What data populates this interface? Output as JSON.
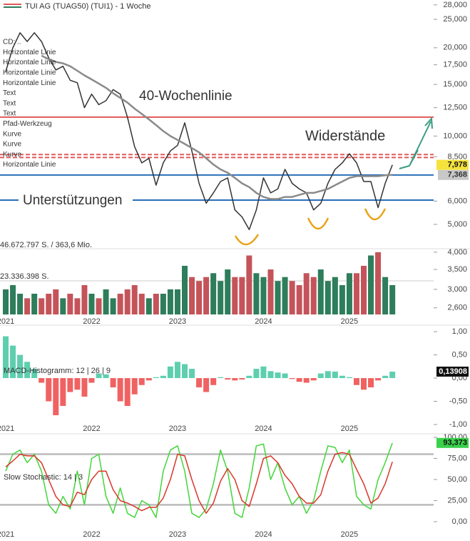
{
  "chart_data": [
    {
      "type": "line",
      "title": "TUI AG (TUAG50) (TUI1) - 1 Woche",
      "log_scale": true,
      "categories": [
        "2021",
        null,
        null,
        null,
        null,
        null,
        null,
        null,
        null,
        null,
        null,
        null,
        "2022",
        null,
        null,
        null,
        null,
        null,
        null,
        null,
        null,
        null,
        null,
        null,
        "2023",
        null,
        null,
        null,
        null,
        null,
        null,
        null,
        null,
        null,
        null,
        null,
        "2024",
        null,
        null,
        null,
        null,
        null,
        null,
        null,
        null,
        null,
        null,
        null,
        "2025",
        null,
        null,
        null,
        null,
        null,
        null
      ],
      "series": [
        {
          "color": "#333333",
          "values": [
            16.6,
            20.0,
            22.5,
            21.0,
            22.5,
            21.0,
            18.5,
            16.8,
            17.3,
            15.5,
            15.2,
            12.5,
            13.9,
            12.8,
            13.2,
            14.4,
            13.9,
            11.6,
            9.2,
            8.1,
            8.4,
            6.8,
            8.1,
            8.9,
            9.3,
            11.1,
            8.9,
            6.9,
            5.9,
            6.4,
            7.0,
            7.2,
            5.6,
            5.3,
            4.8,
            5.6,
            7.2,
            6.4,
            6.6,
            7.7,
            6.9,
            6.6,
            6.4,
            5.6,
            5.9,
            6.9,
            7.7,
            8.1,
            8.7,
            8.1,
            7.0,
            7.0,
            5.7,
            6.9,
            7.978
          ]
        },
        {
          "color": "#8a8a8a",
          "values": [
            null,
            null,
            null,
            null,
            null,
            18.8,
            18.3,
            17.9,
            17.7,
            17.3,
            16.7,
            16.1,
            15.6,
            15.1,
            14.6,
            14.0,
            13.5,
            13.0,
            12.4,
            11.9,
            11.4,
            10.9,
            10.4,
            10.0,
            9.7,
            9.4,
            9.1,
            8.8,
            8.4,
            8.0,
            7.7,
            7.5,
            7.2,
            6.9,
            6.7,
            6.4,
            6.2,
            6.1,
            6.1,
            6.2,
            6.2,
            6.3,
            6.4,
            6.4,
            6.5,
            6.6,
            6.8,
            7.0,
            7.2,
            7.3,
            7.3,
            7.3,
            7.3,
            7.35,
            7.37
          ]
        }
      ],
      "ylim": [
        4.13,
        29.1
      ],
      "yticks": [
        {
          "value": 28,
          "label": "28,000"
        },
        {
          "value": 25,
          "label": "25,000"
        },
        {
          "value": 20,
          "label": "20,000"
        },
        {
          "value": 17.5,
          "label": "17,500"
        },
        {
          "value": 15,
          "label": "15,000"
        },
        {
          "value": 12.5,
          "label": "12,500"
        },
        {
          "value": 10,
          "label": "10,000"
        },
        {
          "value": 8.5,
          "label": "8,500"
        },
        {
          "value": 6,
          "label": "6,000"
        },
        {
          "value": 5,
          "label": "5,000"
        }
      ],
      "hlines": [
        {
          "value": 11.6,
          "color": "#e05a5a",
          "style": "solid"
        },
        {
          "value": 8.65,
          "color": "#e05a5a",
          "style": "dashed"
        },
        {
          "value": 8.45,
          "color": "#e05a5a",
          "style": "dashed"
        },
        {
          "value": 7.368,
          "color": "#2a6fba",
          "style": "solid",
          "label": "7,368"
        },
        {
          "value": 6.05,
          "color": "#2a6fba",
          "style": "solid"
        }
      ],
      "last_label": {
        "value": 7.978,
        "label": "7,978"
      },
      "annotations": [
        {
          "text": "40-Wochenlinie",
          "color": "#7a7a7a"
        },
        {
          "text": "Widerstände",
          "color": "#e05a5a"
        },
        {
          "text": "Unterstützungen",
          "color": "#2a6fba"
        }
      ],
      "tools": [
        {
          "label": "CD: ..",
          "color": "#888888"
        },
        {
          "label": "Horizontale Linie",
          "color": "#2a6fba"
        },
        {
          "label": "Horizontale Linie",
          "color": "#e05a5a"
        },
        {
          "label": "Horizontale Linie",
          "color": "#e05a5a"
        },
        {
          "label": "Horizontale Linie",
          "color": "#2a6fba"
        },
        {
          "label": "Text",
          "color": "#222222"
        },
        {
          "label": "Text",
          "color": "#222222"
        },
        {
          "label": "Text",
          "color": "#222222"
        },
        {
          "label": "Pfad-Werkzeug",
          "color": "#777777"
        },
        {
          "label": "Kurve",
          "color": "#e8a317"
        },
        {
          "label": "Kurve",
          "color": "#e8a317"
        },
        {
          "label": "Kurve",
          "color": "#e8a317"
        },
        {
          "label": "Horizontale Linie",
          "color": "#e05a5a"
        }
      ]
    },
    {
      "type": "bar",
      "log_scale": true,
      "ylim": [
        2.47,
        4.11
      ],
      "yticks": [
        {
          "value": 4,
          "label": "4,000"
        },
        {
          "value": 3.5,
          "label": "3,500"
        },
        {
          "value": 3,
          "label": "3,000"
        },
        {
          "value": 2.6,
          "label": "2,600"
        }
      ],
      "values": [
        3.0,
        3.1,
        2.9,
        2.8,
        2.9,
        2.8,
        2.9,
        3.0,
        2.8,
        2.9,
        2.8,
        3.1,
        2.9,
        2.8,
        3.0,
        2.8,
        2.9,
        3.0,
        3.1,
        2.9,
        2.8,
        2.9,
        2.9,
        3.0,
        3.0,
        3.6,
        3.3,
        3.2,
        3.3,
        3.4,
        3.2,
        3.5,
        3.3,
        3.3,
        3.9,
        3.4,
        3.3,
        3.5,
        3.2,
        3.3,
        3.2,
        3.1,
        3.4,
        3.3,
        3.5,
        3.2,
        3.3,
        3.1,
        3.4,
        3.4,
        3.6,
        3.9,
        4.0,
        3.3,
        3.1
      ],
      "up_color": "#2e7d5b",
      "down_color": "#c4545a",
      "volume_labels": [
        "46.672.797 S. / 363,6 Mio.",
        "23.336.398 S."
      ]
    },
    {
      "type": "bar",
      "title": "MACD-Histogramm: 12 | 26 | 9",
      "ylim": [
        -1.0,
        1.14
      ],
      "yticks": [
        {
          "value": 1,
          "label": "1,00"
        },
        {
          "value": 0.5,
          "label": "0,50"
        },
        {
          "value": 0,
          "label": "0,00"
        },
        {
          "value": -0.5,
          "label": "-0,50"
        },
        {
          "value": -1,
          "label": "-1,00"
        }
      ],
      "values": [
        0.9,
        0.7,
        0.5,
        0.35,
        0.2,
        -0.1,
        -0.5,
        -0.8,
        -0.6,
        -0.3,
        -0.25,
        -0.4,
        -0.1,
        0.1,
        0.08,
        -0.2,
        -0.5,
        -0.6,
        -0.35,
        -0.15,
        -0.05,
        0.02,
        0.05,
        0.25,
        0.35,
        0.3,
        0.2,
        -0.2,
        -0.3,
        -0.15,
        0.02,
        -0.03,
        -0.05,
        -0.03,
        0.05,
        0.2,
        0.25,
        0.15,
        0.12,
        0.1,
        -0.02,
        -0.08,
        -0.1,
        -0.05,
        0.1,
        0.15,
        0.14,
        0.05,
        0.02,
        -0.15,
        -0.25,
        -0.2,
        -0.05,
        0.05,
        0.139
      ],
      "positive_color": "#5ecfae",
      "negative_color": "#f06262",
      "last_label": {
        "value": 0.13908,
        "label": "0,13908"
      }
    },
    {
      "type": "line",
      "title": "Slow Stochastic: 14 | 3",
      "ylim": [
        -10.2,
        104.2
      ],
      "yticks": [
        {
          "value": 100,
          "label": "100,00"
        },
        {
          "value": 75,
          "label": "75,00"
        },
        {
          "value": 50,
          "label": "50,00"
        },
        {
          "value": 25,
          "label": "25,00"
        },
        {
          "value": 0,
          "label": "0,00"
        }
      ],
      "levels": [
        80,
        20
      ],
      "series": [
        {
          "color": "#43d63a",
          "values": [
            60,
            80,
            85,
            70,
            80,
            60,
            20,
            10,
            30,
            15,
            60,
            20,
            75,
            80,
            30,
            10,
            40,
            10,
            5,
            25,
            20,
            5,
            60,
            85,
            90,
            60,
            10,
            5,
            15,
            45,
            85,
            60,
            10,
            5,
            40,
            90,
            92,
            50,
            70,
            40,
            20,
            30,
            10,
            25,
            60,
            90,
            88,
            70,
            85,
            30,
            20,
            15,
            50,
            70,
            93.373
          ]
        },
        {
          "color": "#d9362b",
          "values": [
            65,
            72,
            80,
            78,
            78,
            70,
            50,
            30,
            20,
            18,
            35,
            32,
            50,
            60,
            60,
            38,
            25,
            22,
            18,
            13,
            17,
            17,
            28,
            50,
            80,
            78,
            50,
            25,
            10,
            22,
            48,
            63,
            50,
            25,
            18,
            45,
            75,
            78,
            70,
            55,
            45,
            30,
            22,
            22,
            32,
            60,
            80,
            82,
            80,
            62,
            45,
            22,
            28,
            45,
            71
          ]
        }
      ],
      "last_label": {
        "value": 93.373,
        "label": "93,373"
      }
    }
  ]
}
